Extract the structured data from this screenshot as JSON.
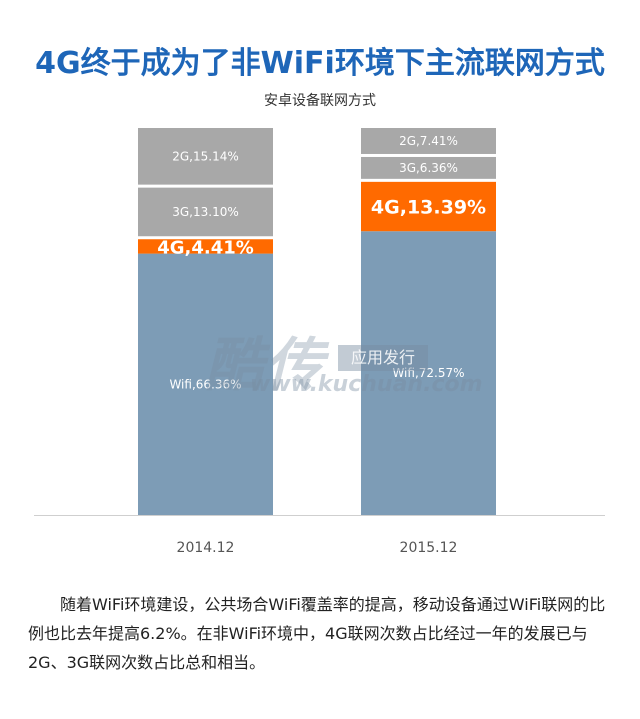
{
  "title": "4G终于成为了非WiFi环境下主流联网方式",
  "chart_data": {
    "type": "stacked-bar",
    "title": "安卓设备联网方式",
    "categories": [
      "2014.12",
      "2015.12"
    ],
    "series": [
      {
        "name": "Wifi",
        "values": [
          66.36,
          72.57
        ],
        "labels": [
          "Wifi,66.36%",
          "Wifi,72.57%"
        ],
        "color": "#7d9cb6"
      },
      {
        "name": "4G",
        "values": [
          4.41,
          13.39
        ],
        "labels": [
          "4G,4.41%",
          "4G,13.39%"
        ],
        "color": "#ff6a00"
      },
      {
        "name": "3G",
        "values": [
          13.1,
          6.36
        ],
        "labels": [
          "3G,13.10%",
          "3G,6.36%"
        ],
        "color": "#a8a8a8"
      },
      {
        "name": "2G",
        "values": [
          15.14,
          7.41
        ],
        "labels": [
          "2G,15.14%",
          "2G,7.41%"
        ],
        "color": "#a8a8a8"
      }
    ],
    "highlight_series": "4G"
  },
  "watermark": {
    "brand": "酷传",
    "badge": "应用发行",
    "url": "www.kuchuan.com"
  },
  "caption": "随着WiFi环境建设，公共场合WiFi覆盖率的提高，移动设备通过WiFi联网的比例也比去年提高6.2%。在非WiFi环境中，4G联网次数占比经过一年的发展已与2G、3G联网次数占比总和相当。"
}
